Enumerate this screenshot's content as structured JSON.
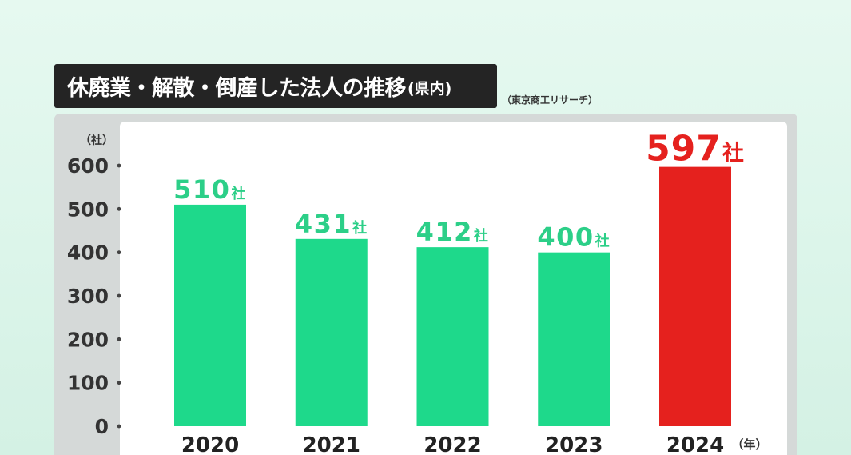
{
  "title": {
    "main": "休廃業・解散・倒産した法人の推移",
    "sub": "(県内)"
  },
  "source": "（東京商工リサーチ）",
  "colors": {
    "bar": "#1ed98b",
    "highlight": "#e5211e",
    "label_text": "#2ccf88",
    "title_bg": "#242424",
    "panel": "#d5d9d8"
  },
  "chart_data": {
    "type": "bar",
    "categories": [
      "2020",
      "2021",
      "2022",
      "2023",
      "2024"
    ],
    "values": [
      510,
      431,
      412,
      400,
      597
    ],
    "value_unit": "社",
    "highlight_index": 4,
    "ylabel": "（社）",
    "xlabel": "（年）",
    "yticks": [
      0,
      100,
      200,
      300,
      400,
      500,
      600
    ],
    "ylim": [
      0,
      600
    ],
    "grid": false,
    "legend": "none"
  }
}
